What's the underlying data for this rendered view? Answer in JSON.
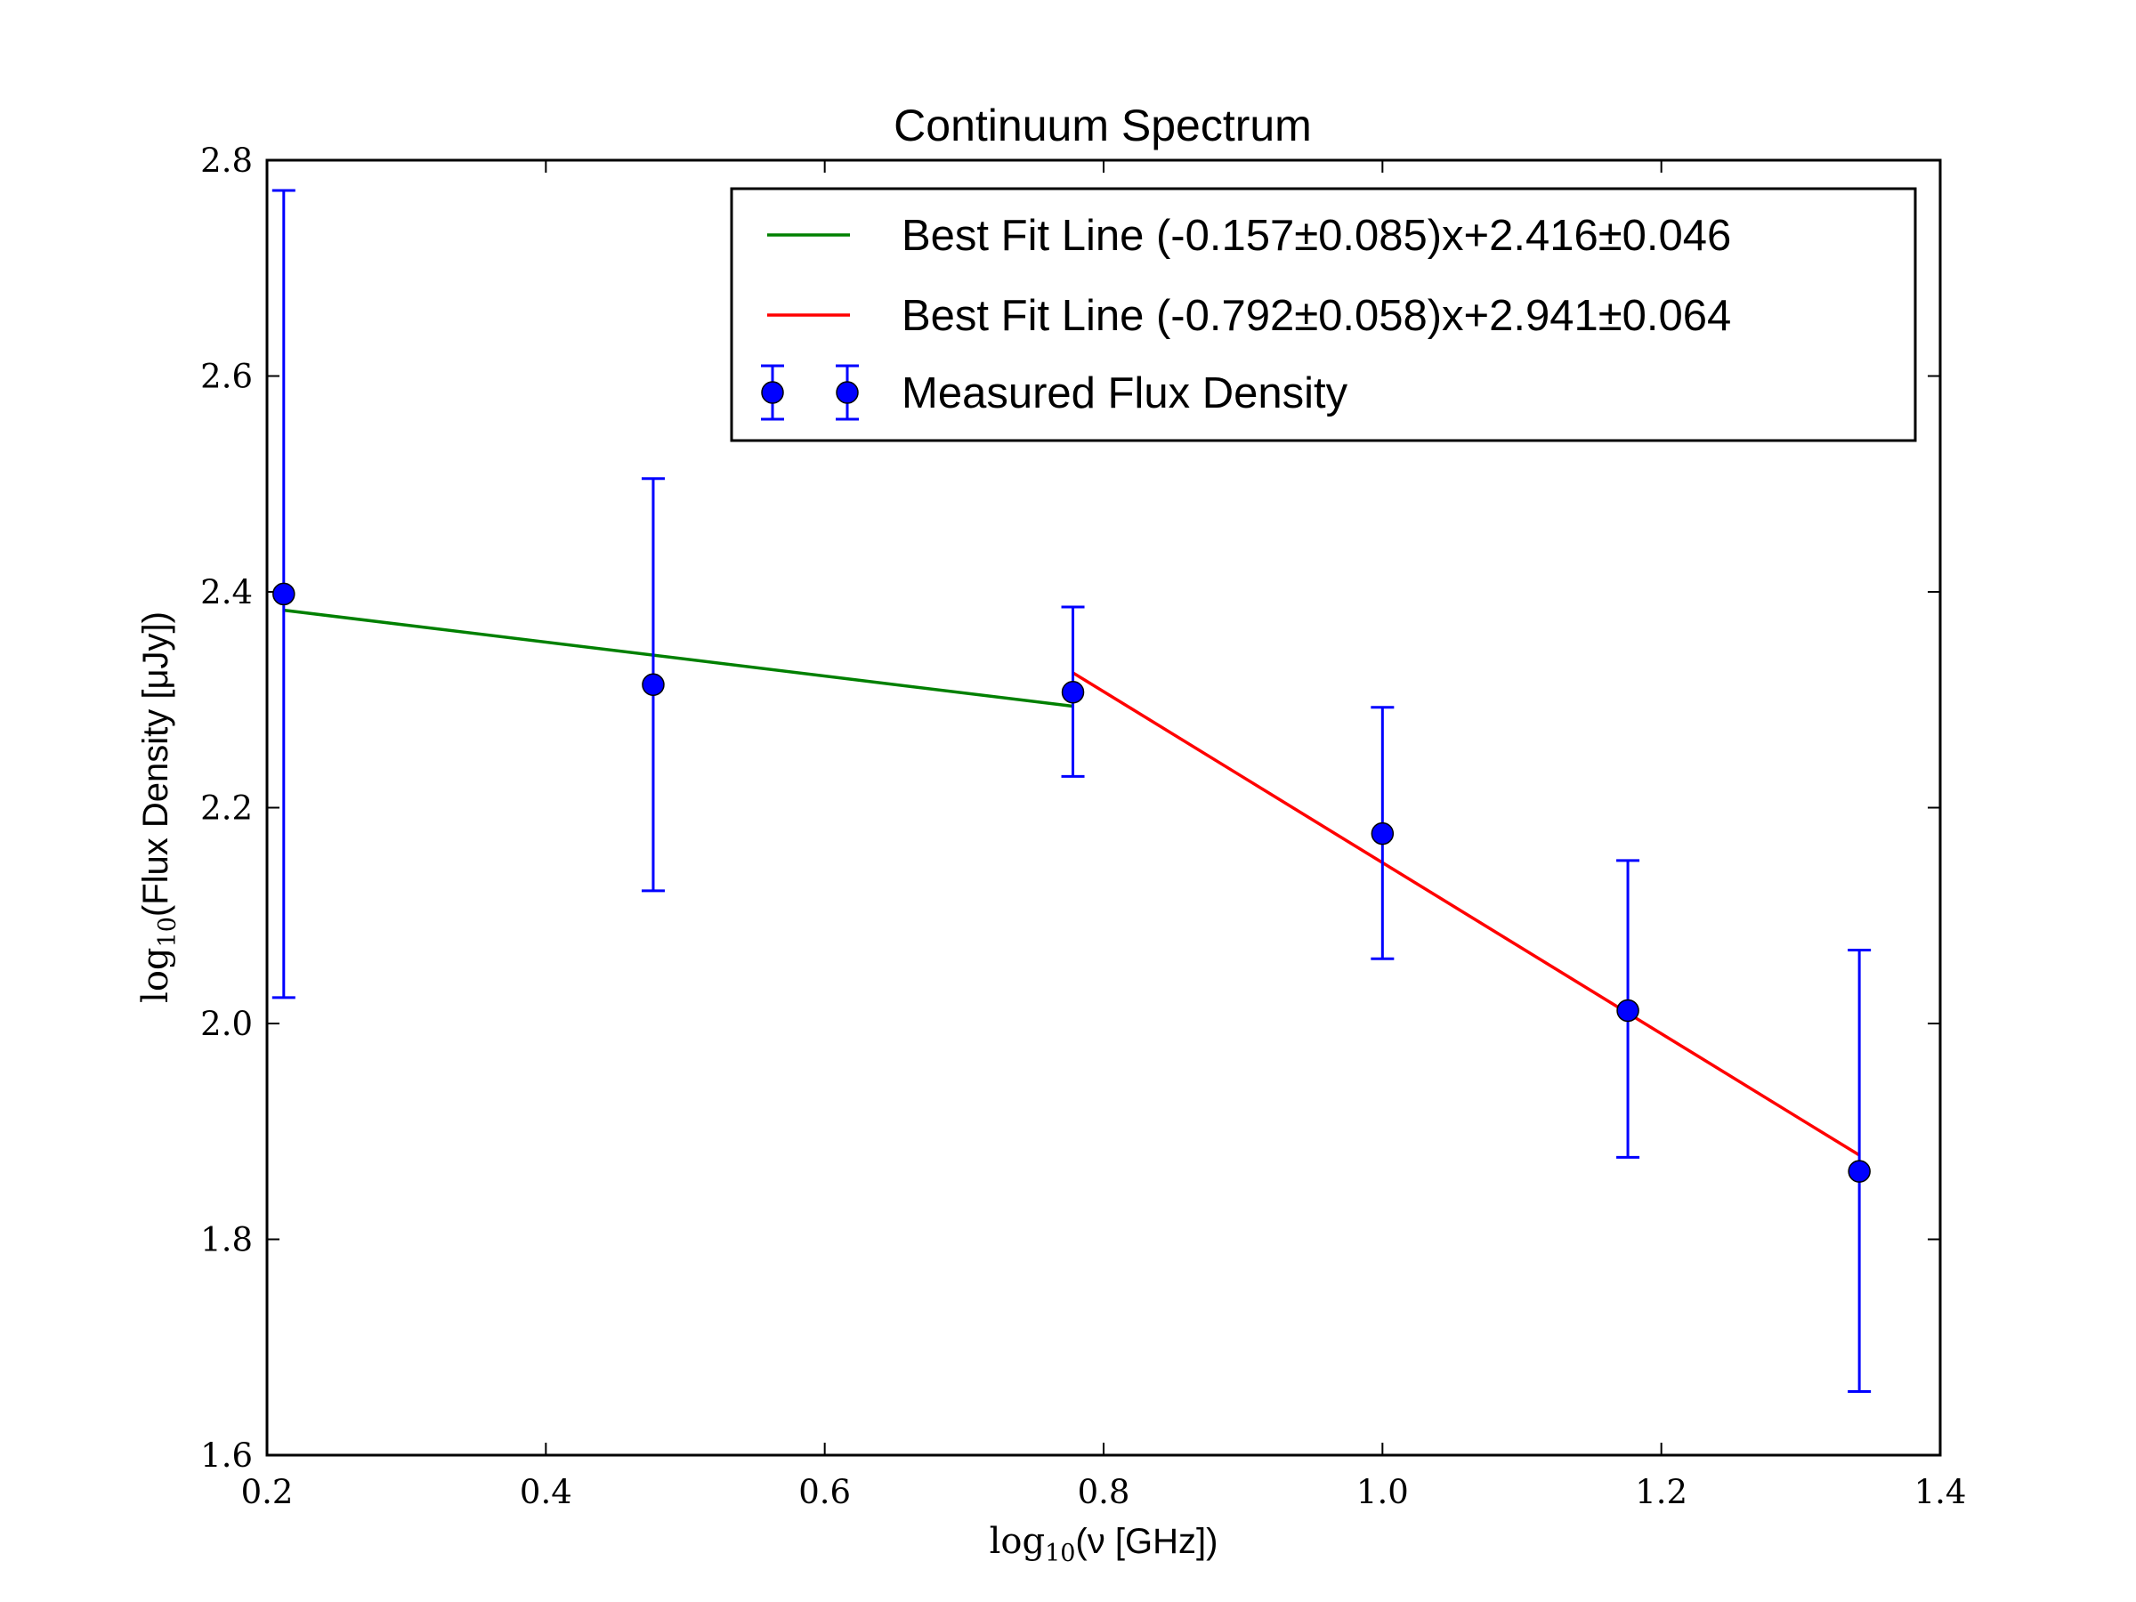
{
  "chart_data": {
    "type": "scatter",
    "title": "Continuum Spectrum",
    "xlabel": {
      "prefix": "log",
      "sub": "10",
      "text": "(ν [GHz])"
    },
    "ylabel": {
      "prefix": "log",
      "sub": "10",
      "text": "(Flux Density [μJy])"
    },
    "xlim": [
      0.2,
      1.4
    ],
    "ylim": [
      1.6,
      2.8
    ],
    "xticks": [
      "0.2",
      "0.4",
      "0.6",
      "0.8",
      "1.0",
      "1.2",
      "1.4"
    ],
    "yticks": [
      "1.6",
      "1.8",
      "2.0",
      "2.2",
      "2.4",
      "2.6",
      "2.8"
    ],
    "grid": false,
    "legend_position": "top-right",
    "series": [
      {
        "name": "Best Fit Line (-0.157±0.085)x+2.416±0.046",
        "kind": "line",
        "color": "#008000",
        "x": [
          0.212,
          0.778
        ],
        "y": [
          2.383,
          2.294
        ]
      },
      {
        "name": "Best Fit Line (-0.792±0.058)x+2.941±0.064",
        "kind": "line",
        "color": "#ff0000",
        "x": [
          0.778,
          1.342
        ],
        "y": [
          2.325,
          1.878
        ]
      },
      {
        "name": "Measured Flux Density",
        "kind": "errorbar",
        "color": "#0000ff",
        "x": [
          0.212,
          0.477,
          0.778,
          1.0,
          1.176,
          1.342
        ],
        "y": [
          2.398,
          2.314,
          2.307,
          2.176,
          2.012,
          1.863
        ],
        "yerr_low": [
          2.024,
          2.123,
          2.229,
          2.06,
          1.876,
          1.659
        ],
        "yerr_high": [
          2.772,
          2.505,
          2.386,
          2.293,
          2.151,
          2.068
        ]
      }
    ]
  }
}
